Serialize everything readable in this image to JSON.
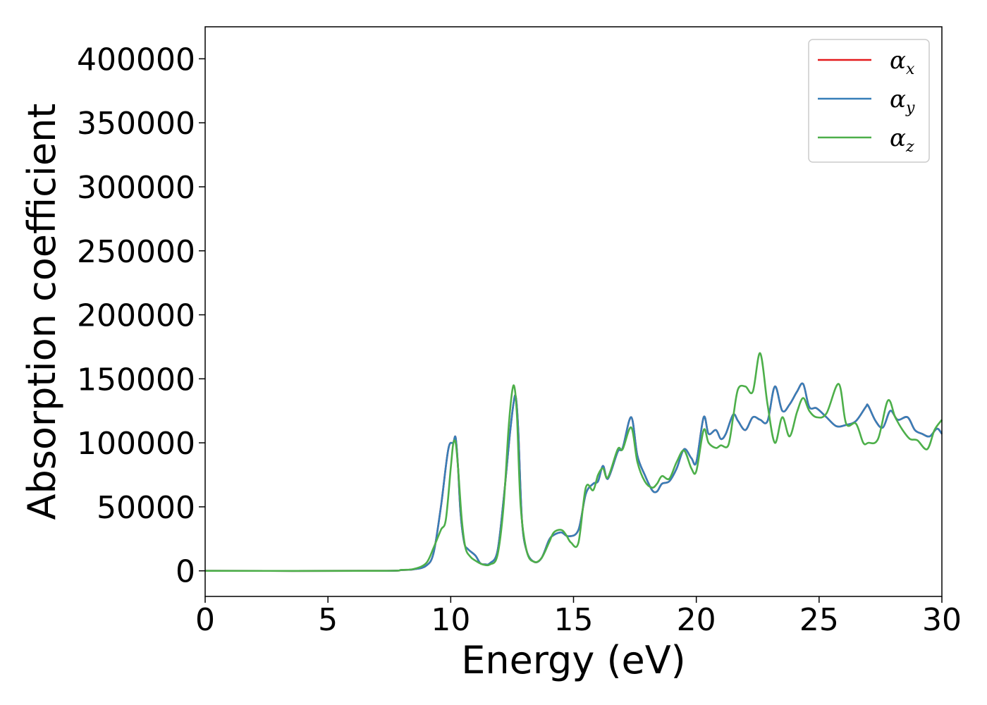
{
  "chart_data": {
    "type": "line",
    "title": "",
    "xlabel": "Energy (eV)",
    "ylabel": "Absorption coefficient",
    "xlim": [
      0,
      30
    ],
    "ylim": [
      -20000,
      425000
    ],
    "xticks": [
      0,
      5,
      10,
      15,
      20,
      25,
      30
    ],
    "yticks": [
      0,
      50000,
      100000,
      150000,
      200000,
      250000,
      300000,
      350000,
      400000
    ],
    "xtick_labels": [
      "0",
      "5",
      "10",
      "15",
      "20",
      "25",
      "30"
    ],
    "ytick_labels": [
      "0",
      "50000",
      "100000",
      "150000",
      "200000",
      "250000",
      "300000",
      "350000",
      "400000"
    ],
    "grid": false,
    "legend_position": "top-right",
    "series": [
      {
        "name": "αx",
        "legend_base": "α",
        "legend_sub": "x",
        "color": "#e41a1c",
        "x": [
          0,
          7,
          8,
          8.5,
          9,
          9.3,
          9.6,
          9.9,
          10.1,
          10.2,
          10.3,
          10.4,
          10.55,
          10.7,
          11.0,
          11.2,
          11.4,
          11.6,
          11.9,
          12.15,
          12.4,
          12.55,
          12.65,
          12.75,
          12.9,
          13.1,
          13.4,
          13.7,
          14.0,
          14.2,
          14.5,
          14.8,
          15.2,
          15.5,
          15.8,
          16.0,
          16.2,
          16.4,
          16.8,
          17.0,
          17.35,
          17.6,
          17.9,
          18.2,
          18.4,
          18.6,
          18.9,
          19.2,
          19.5,
          19.8,
          20.0,
          20.3,
          20.5,
          20.8,
          21.0,
          21.2,
          21.5,
          21.7,
          22.0,
          22.3,
          22.6,
          22.9,
          23.2,
          23.5,
          23.8,
          24.1,
          24.35,
          24.6,
          24.9,
          25.3,
          25.7,
          26.1,
          26.5,
          26.9,
          27.0,
          27.3,
          27.6,
          27.9,
          28.2,
          28.6,
          28.9,
          29.2,
          29.5,
          29.8,
          30.0
        ],
        "y": [
          0,
          0,
          600,
          1200,
          4000,
          14000,
          50000,
          95000,
          100000,
          104000,
          80000,
          45000,
          22000,
          17000,
          12000,
          6000,
          5000,
          6000,
          15000,
          55000,
          105000,
          130000,
          136000,
          110000,
          40000,
          15000,
          7000,
          10000,
          24000,
          28000,
          30000,
          27000,
          32000,
          60000,
          68000,
          70000,
          82000,
          72000,
          93000,
          96000,
          120000,
          90000,
          75000,
          63000,
          62000,
          68000,
          70000,
          80000,
          95000,
          88000,
          85000,
          120000,
          107000,
          110000,
          103000,
          107000,
          122000,
          117000,
          110000,
          120000,
          118000,
          117000,
          144000,
          125000,
          130000,
          140000,
          146000,
          128000,
          127000,
          120000,
          113000,
          114000,
          117000,
          128000,
          129000,
          117000,
          112000,
          125000,
          118000,
          120000,
          110000,
          107000,
          105000,
          111000,
          107000
        ]
      },
      {
        "name": "αy",
        "legend_base": "α",
        "legend_sub": "y",
        "color": "#377eb8",
        "x": [
          0,
          7,
          8,
          8.5,
          9,
          9.3,
          9.6,
          9.9,
          10.1,
          10.2,
          10.3,
          10.4,
          10.55,
          10.7,
          11.0,
          11.2,
          11.4,
          11.6,
          11.9,
          12.15,
          12.4,
          12.55,
          12.65,
          12.75,
          12.9,
          13.1,
          13.4,
          13.7,
          14.0,
          14.2,
          14.5,
          14.8,
          15.2,
          15.5,
          15.8,
          16.0,
          16.2,
          16.4,
          16.8,
          17.0,
          17.35,
          17.6,
          17.9,
          18.2,
          18.4,
          18.6,
          18.9,
          19.2,
          19.5,
          19.8,
          20.0,
          20.3,
          20.5,
          20.8,
          21.0,
          21.2,
          21.5,
          21.7,
          22.0,
          22.3,
          22.6,
          22.9,
          23.2,
          23.5,
          23.8,
          24.1,
          24.35,
          24.6,
          24.9,
          25.3,
          25.7,
          26.1,
          26.5,
          26.9,
          27.0,
          27.3,
          27.6,
          27.9,
          28.2,
          28.6,
          28.9,
          29.2,
          29.5,
          29.8,
          30.0
        ],
        "y": [
          0,
          0,
          600,
          1200,
          4000,
          14000,
          50000,
          95000,
          100000,
          104000,
          80000,
          45000,
          22000,
          17000,
          12000,
          6000,
          5000,
          6000,
          15000,
          55000,
          105000,
          130000,
          136000,
          110000,
          40000,
          15000,
          7000,
          10000,
          24000,
          28000,
          30000,
          27000,
          32000,
          60000,
          68000,
          70000,
          82000,
          72000,
          93000,
          96000,
          120000,
          90000,
          75000,
          63000,
          62000,
          68000,
          70000,
          80000,
          95000,
          88000,
          85000,
          120000,
          107000,
          110000,
          103000,
          107000,
          122000,
          117000,
          110000,
          120000,
          118000,
          117000,
          144000,
          125000,
          130000,
          140000,
          146000,
          128000,
          127000,
          120000,
          113000,
          114000,
          117000,
          128000,
          129000,
          117000,
          112000,
          125000,
          118000,
          120000,
          110000,
          107000,
          105000,
          111000,
          107000
        ]
      },
      {
        "name": "αz",
        "legend_base": "α",
        "legend_sub": "z",
        "color": "#4daf4a",
        "x": [
          0,
          7,
          8,
          8.5,
          9,
          9.3,
          9.6,
          9.8,
          10.0,
          10.1,
          10.2,
          10.3,
          10.45,
          10.6,
          10.8,
          11.0,
          11.3,
          11.6,
          11.9,
          12.15,
          12.35,
          12.5,
          12.6,
          12.7,
          12.85,
          13.1,
          13.4,
          13.7,
          14.0,
          14.2,
          14.5,
          14.7,
          14.9,
          15.2,
          15.5,
          15.8,
          16.0,
          16.2,
          16.4,
          16.8,
          17.0,
          17.35,
          17.6,
          17.9,
          18.2,
          18.4,
          18.6,
          18.9,
          19.2,
          19.5,
          19.8,
          20.0,
          20.3,
          20.5,
          20.8,
          21.0,
          21.3,
          21.5,
          21.7,
          22.0,
          22.3,
          22.6,
          22.9,
          23.2,
          23.5,
          23.8,
          24.1,
          24.35,
          24.6,
          24.9,
          25.3,
          25.8,
          26.1,
          26.5,
          26.8,
          27.0,
          27.4,
          27.8,
          28.1,
          28.4,
          28.7,
          29.0,
          29.4,
          29.7,
          30.0
        ],
        "y": [
          0,
          0,
          700,
          1500,
          6000,
          18000,
          32000,
          40000,
          80000,
          99000,
          100000,
          80000,
          40000,
          18000,
          11000,
          8000,
          5000,
          5000,
          12000,
          50000,
          110000,
          140000,
          143000,
          120000,
          50000,
          15000,
          7000,
          10000,
          22000,
          30000,
          32000,
          28000,
          22000,
          22000,
          65000,
          63000,
          75000,
          80000,
          73000,
          95000,
          95000,
          112000,
          85000,
          70000,
          65000,
          68000,
          74000,
          72000,
          85000,
          94000,
          80000,
          78000,
          110000,
          100000,
          96000,
          98000,
          98000,
          120000,
          142000,
          144000,
          140000,
          170000,
          130000,
          100000,
          120000,
          105000,
          124000,
          135000,
          125000,
          120000,
          123000,
          146000,
          115000,
          115000,
          100000,
          100000,
          103000,
          133000,
          120000,
          110000,
          103000,
          102000,
          95000,
          110000,
          118000
        ]
      }
    ]
  }
}
